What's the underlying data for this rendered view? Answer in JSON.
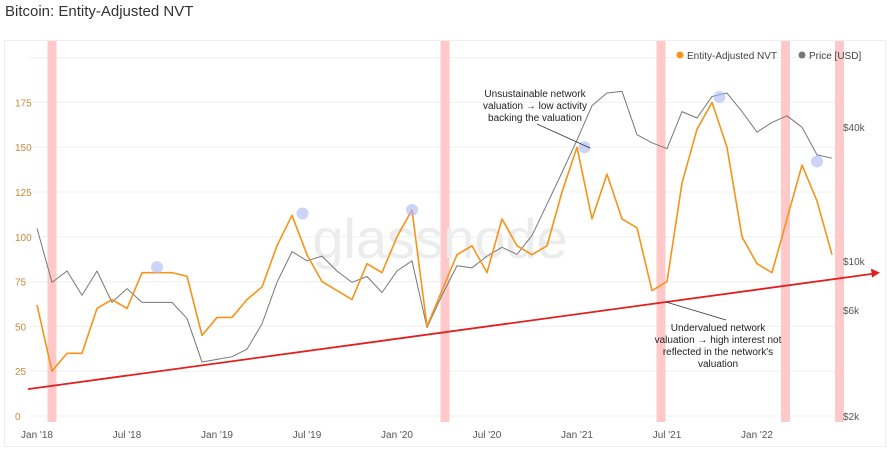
{
  "title": "Bitcoin: Entity-Adjusted NVT",
  "chart_data": {
    "type": "line",
    "title": "Bitcoin: Entity-Adjusted NVT",
    "watermark": "glassnode",
    "x_start": "Jan 2018",
    "x_unit": "months since Jan 2018",
    "x_ticks": [
      {
        "m": 0,
        "label": "Jan '18"
      },
      {
        "m": 6,
        "label": "Jul '18"
      },
      {
        "m": 12,
        "label": "Jan '19"
      },
      {
        "m": 18,
        "label": "Jul '19"
      },
      {
        "m": 24,
        "label": "Jan '20"
      },
      {
        "m": 30,
        "label": "Jul '20"
      },
      {
        "m": 36,
        "label": "Jan '21"
      },
      {
        "m": 42,
        "label": "Jul '21"
      },
      {
        "m": 48,
        "label": "Jan '22"
      }
    ],
    "left_axis": {
      "ylim": [
        0,
        200
      ],
      "ticks": [
        0,
        25,
        50,
        75,
        100,
        125,
        150,
        175
      ]
    },
    "right_axis": {
      "scale": "log",
      "ylim": [
        2000,
        100000
      ],
      "ticks": [
        {
          "v": 2000,
          "label": "$2k"
        },
        {
          "v": 6000,
          "label": "$6k"
        },
        {
          "v": 10000,
          "label": "$10k"
        },
        {
          "v": 40000,
          "label": "$40k"
        }
      ]
    },
    "legend": {
      "position": "top-right",
      "items": [
        {
          "name": "Entity-Adjusted NVT",
          "color": "#f7931a"
        },
        {
          "name": "Price [USD]",
          "color": "#777777"
        }
      ]
    },
    "series": [
      {
        "name": "Entity-Adjusted NVT",
        "color": "#f7931a",
        "axis": "left",
        "values": [
          62,
          25,
          35,
          35,
          60,
          65,
          60,
          80,
          80,
          80,
          78,
          45,
          55,
          55,
          65,
          72,
          95,
          112,
          90,
          75,
          70,
          65,
          85,
          80,
          100,
          115,
          50,
          70,
          90,
          95,
          80,
          110,
          95,
          90,
          95,
          125,
          150,
          110,
          135,
          110,
          105,
          70,
          75,
          130,
          160,
          175,
          150,
          100,
          85,
          80,
          110,
          140,
          120,
          90
        ]
      },
      {
        "name": "Price [USD]",
        "color": "#777777",
        "axis": "right",
        "values": [
          14000,
          8000,
          9000,
          7000,
          9000,
          6500,
          7500,
          6500,
          6500,
          6500,
          5500,
          3500,
          3600,
          3700,
          4000,
          5200,
          8000,
          11000,
          10000,
          10500,
          9000,
          8000,
          8500,
          7200,
          9000,
          10000,
          5000,
          7000,
          9500,
          9300,
          10500,
          11500,
          10700,
          13000,
          18000,
          25000,
          35000,
          50000,
          57000,
          58000,
          37000,
          34000,
          32000,
          47000,
          44000,
          55000,
          57000,
          47000,
          38000,
          42000,
          45000,
          40000,
          30000,
          29000
        ]
      }
    ],
    "highlight_bands_months": [
      1,
      27.2,
      41.6,
      49.9,
      53.5
    ],
    "peak_markers": [
      {
        "m": 8,
        "v": 83
      },
      {
        "m": 17.7,
        "v": 113
      },
      {
        "m": 25,
        "v": 115
      },
      {
        "m": 36.5,
        "v": 150
      },
      {
        "m": 45.5,
        "v": 178
      },
      {
        "m": 52,
        "v": 142
      }
    ],
    "trend_line": {
      "from": {
        "m": -0.6,
        "v": 15
      },
      "to": {
        "m": 56.2,
        "v": 80
      },
      "color": "#e02020"
    },
    "annotations": [
      {
        "lines": [
          "Unsustainable network",
          "valuation → low activity",
          "backing the valuation"
        ]
      },
      {
        "lines": [
          "Undervalued network",
          "valuation → high interest not",
          "reflected in the network's",
          "valuation"
        ]
      }
    ]
  }
}
